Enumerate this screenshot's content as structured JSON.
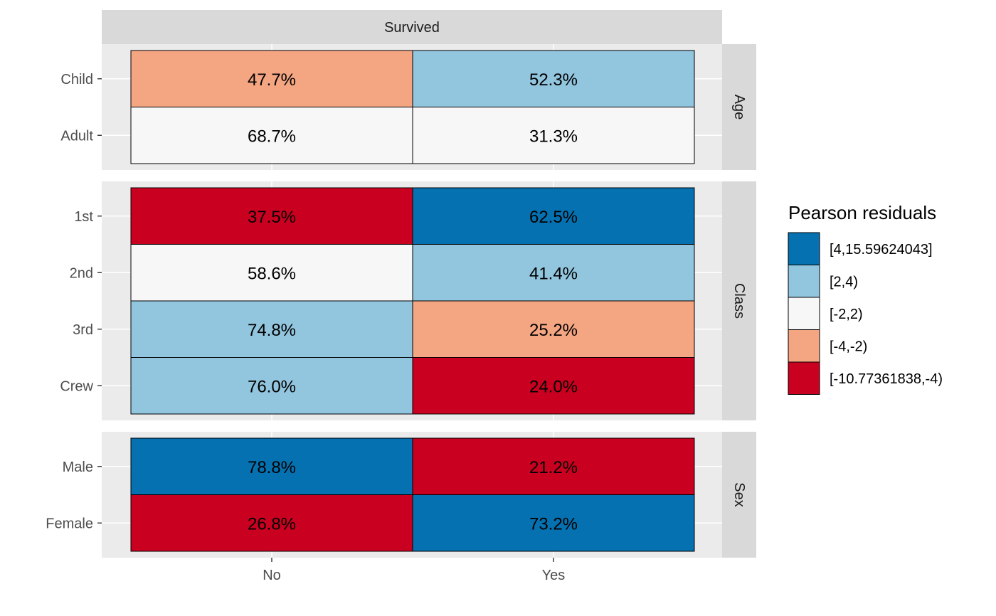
{
  "chart_data": {
    "type": "heatmap",
    "column_facet_title": "Survived",
    "x_categories": [
      "No",
      "Yes"
    ],
    "panels": [
      {
        "name": "Age",
        "rows": [
          "Child",
          "Adult"
        ],
        "values": [
          [
            "47.7%",
            "52.3%"
          ],
          [
            "68.7%",
            "31.3%"
          ]
        ],
        "residual_bins": [
          [
            "[-4,-2)",
            "[2,4)"
          ],
          [
            "[-2,2)",
            "[-2,2)"
          ]
        ]
      },
      {
        "name": "Class",
        "rows": [
          "1st",
          "2nd",
          "3rd",
          "Crew"
        ],
        "values": [
          [
            "37.5%",
            "62.5%"
          ],
          [
            "58.6%",
            "41.4%"
          ],
          [
            "74.8%",
            "25.2%"
          ],
          [
            "76.0%",
            "24.0%"
          ]
        ],
        "residual_bins": [
          [
            "[-10.77361838,-4)",
            "[4,15.59624043]"
          ],
          [
            "[-2,2)",
            "[2,4)"
          ],
          [
            "[2,4)",
            "[-4,-2)"
          ],
          [
            "[2,4)",
            "[-10.77361838,-4)"
          ]
        ]
      },
      {
        "name": "Sex",
        "rows": [
          "Male",
          "Female"
        ],
        "values": [
          [
            "78.8%",
            "21.2%"
          ],
          [
            "26.8%",
            "73.2%"
          ]
        ],
        "residual_bins": [
          [
            "[4,15.59624043]",
            "[-10.77361838,-4)"
          ],
          [
            "[-10.77361838,-4)",
            "[4,15.59624043]"
          ]
        ]
      }
    ],
    "legend": {
      "title": "Pearson residuals",
      "position": "right",
      "items": [
        {
          "label": "[4,15.59624043]",
          "color": "#0571b0"
        },
        {
          "label": "[2,4)",
          "color": "#92c5de"
        },
        {
          "label": "[-2,2)",
          "color": "#f7f7f7"
        },
        {
          "label": "[-4,-2)",
          "color": "#f4a582"
        },
        {
          "label": "[-10.77361838,-4)",
          "color": "#ca0020"
        }
      ]
    },
    "grid": true,
    "panel_background": "#ebebeb",
    "strip_background": "#d9d9d9"
  }
}
